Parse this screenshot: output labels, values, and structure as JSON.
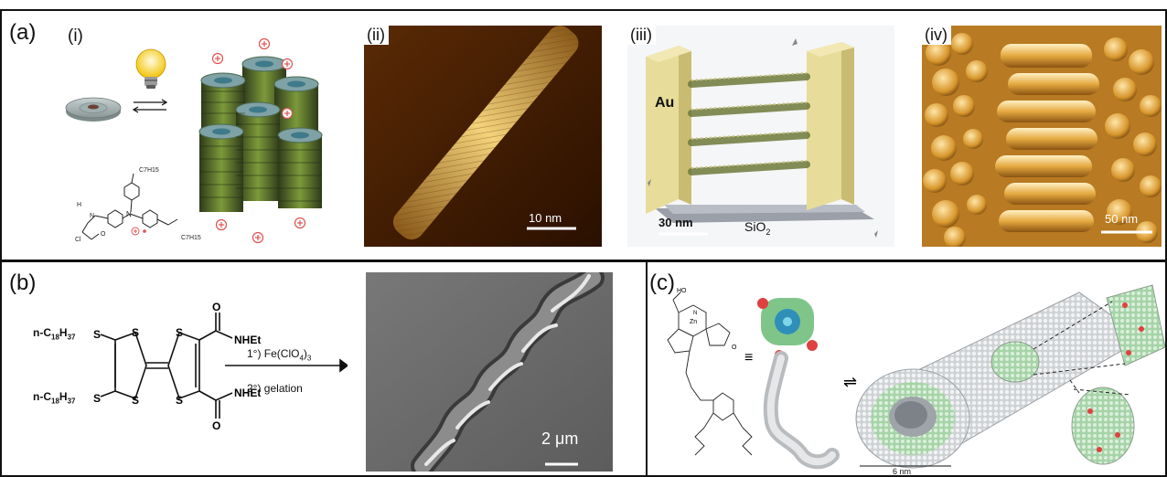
{
  "panel_a": {
    "label": "(a)",
    "sub_i": "(i)",
    "sub_ii": "(ii)",
    "sub_iii": "(iii)",
    "sub_iv": "(iv)",
    "scale_ii": "10 nm",
    "scale_iii": "30 nm",
    "scale_iv": "50 nm",
    "electrode_label": "Au",
    "substrate_label": "SiO",
    "substrate_sub": "2",
    "chem": {
      "h": "H",
      "n": "N",
      "n2": "N",
      "o": "O",
      "cl": "Cl",
      "c7h15_top": "C7H15",
      "c7h15_bot": "C7H15"
    }
  },
  "panel_b": {
    "label": "(b)",
    "substituent": "n-C",
    "sub_18": "18",
    "h37": "H",
    "sub_37": "37",
    "s_atom": "S",
    "s_ring": "S",
    "amide": "NHEt",
    "carbonyl": "O",
    "step1_prefix": "1°) Fe(ClO",
    "step1_sub4": "4",
    "step1_close": ")",
    "step1_sub3": "3",
    "step2": "2°) gelation",
    "scale": "2 μm"
  },
  "panel_c": {
    "label": "(c)",
    "ho": "HO",
    "zn": "Zn",
    "n": "N",
    "o": "O",
    "equiv": "≡",
    "equilibrium": "⇌",
    "scale": "6 nm"
  },
  "colors": {
    "afm_dark": "#3a1a00",
    "afm_light": "#f0c060",
    "electrode": "#e8dc9a",
    "disk_green": "#5a7a2a",
    "sem_grey": "#6b6b6b"
  }
}
